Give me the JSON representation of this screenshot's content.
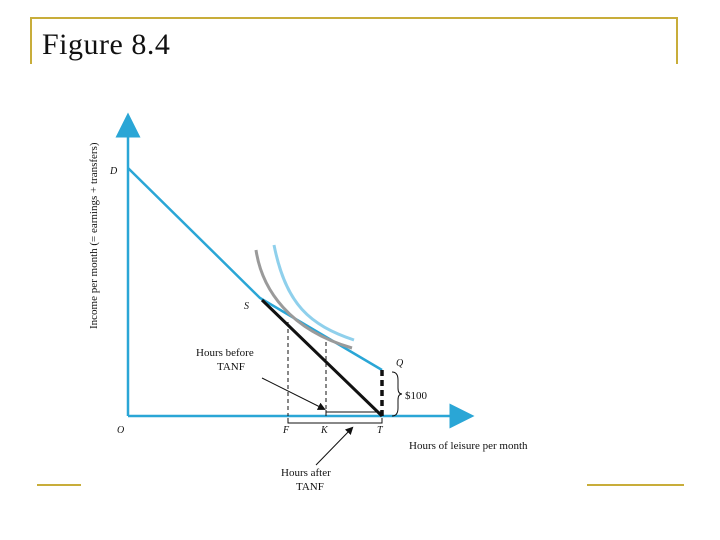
{
  "slide": {
    "title": "Figure 8.4"
  },
  "figure": {
    "y_axis_label": "Income per month (= earnings + transfers)",
    "x_axis_label": "Hours of leisure per month",
    "points": {
      "D": "D",
      "S": "S",
      "Q": "Q",
      "O": "O",
      "F": "F",
      "K": "K",
      "T": "T"
    },
    "amount_label": "$100",
    "before_label_line1": "Hours before",
    "before_label_line2": "TANF",
    "after_label_line1": "Hours after",
    "after_label_line2": "TANF"
  },
  "colors": {
    "frame": "#c8ad3a",
    "axis": "#2aa6d6",
    "budget_line": "#2aa6d6",
    "kinked_line": "#111111",
    "indifference_curve_low": "#9a9a9a",
    "indifference_curve_high": "#8fd0ec"
  }
}
